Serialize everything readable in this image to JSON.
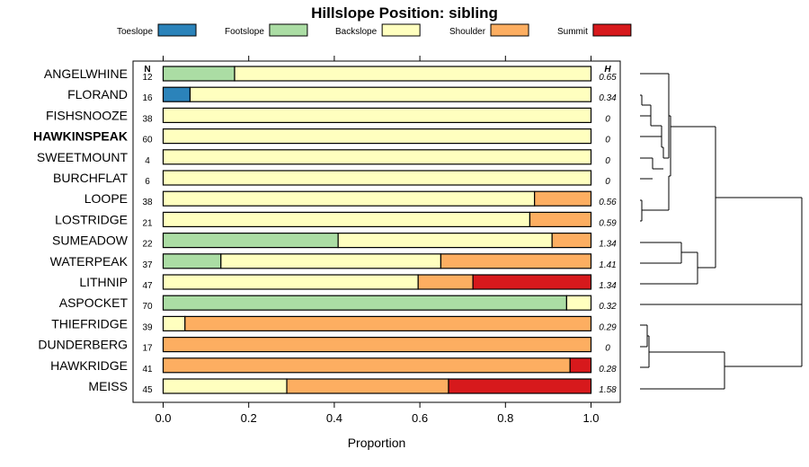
{
  "chart_data": {
    "type": "bar",
    "title": "Hillslope Position: sibling",
    "xlabel": "Proportion",
    "xlim": [
      0,
      1
    ],
    "xticks": [
      "0.0",
      "0.2",
      "0.4",
      "0.6",
      "0.8",
      "1.0"
    ],
    "n_header": "N",
    "h_header": "H",
    "legend_position": "top",
    "legend": [
      {
        "name": "Toeslope",
        "color": "#2b83ba"
      },
      {
        "name": "Footslope",
        "color": "#abdda4"
      },
      {
        "name": "Backslope",
        "color": "#ffffbf"
      },
      {
        "name": "Shoulder",
        "color": "#fdae61"
      },
      {
        "name": "Summit",
        "color": "#d7191c"
      }
    ],
    "rows": [
      {
        "label": "ANGELWHINE",
        "bold": false,
        "n": "12",
        "h": "0.65",
        "values": [
          0,
          0.167,
          0.833,
          0,
          0
        ]
      },
      {
        "label": "FLORAND",
        "bold": false,
        "n": "16",
        "h": "0.34",
        "values": [
          0.063,
          0,
          0.937,
          0,
          0
        ]
      },
      {
        "label": "FISHSNOOZE",
        "bold": false,
        "n": "38",
        "h": "0",
        "values": [
          0,
          0,
          1,
          0,
          0
        ]
      },
      {
        "label": "HAWKINSPEAK",
        "bold": true,
        "n": "60",
        "h": "0",
        "values": [
          0,
          0,
          1,
          0,
          0
        ]
      },
      {
        "label": "SWEETMOUNT",
        "bold": false,
        "n": "4",
        "h": "0",
        "values": [
          0,
          0,
          1,
          0,
          0
        ]
      },
      {
        "label": "BURCHFLAT",
        "bold": false,
        "n": "6",
        "h": "0",
        "values": [
          0,
          0,
          1,
          0,
          0
        ]
      },
      {
        "label": "LOOPE",
        "bold": false,
        "n": "38",
        "h": "0.56",
        "values": [
          0,
          0,
          0.868,
          0.132,
          0
        ]
      },
      {
        "label": "LOSTRIDGE",
        "bold": false,
        "n": "21",
        "h": "0.59",
        "values": [
          0,
          0,
          0.857,
          0.143,
          0
        ]
      },
      {
        "label": "SUMEADOW",
        "bold": false,
        "n": "22",
        "h": "1.34",
        "values": [
          0,
          0.409,
          0.5,
          0.091,
          0
        ]
      },
      {
        "label": "WATERPEAK",
        "bold": false,
        "n": "37",
        "h": "1.41",
        "values": [
          0,
          0.135,
          0.514,
          0.351,
          0
        ]
      },
      {
        "label": "LITHNIP",
        "bold": false,
        "n": "47",
        "h": "1.34",
        "values": [
          0,
          0,
          0.596,
          0.128,
          0.276
        ]
      },
      {
        "label": "ASPOCKET",
        "bold": false,
        "n": "70",
        "h": "0.32",
        "values": [
          0,
          0.943,
          0.057,
          0,
          0
        ]
      },
      {
        "label": "THIEFRIDGE",
        "bold": false,
        "n": "39",
        "h": "0.29",
        "values": [
          0,
          0,
          0.051,
          0.949,
          0
        ]
      },
      {
        "label": "DUNDERBERG",
        "bold": false,
        "n": "17",
        "h": "0",
        "values": [
          0,
          0,
          0,
          1,
          0
        ]
      },
      {
        "label": "HAWKRIDGE",
        "bold": false,
        "n": "41",
        "h": "0.28",
        "values": [
          0,
          0,
          0,
          0.951,
          0.049
        ]
      },
      {
        "label": "MEISS",
        "bold": false,
        "n": "45",
        "h": "1.58",
        "values": [
          0,
          0,
          0.289,
          0.378,
          0.333
        ]
      }
    ]
  }
}
